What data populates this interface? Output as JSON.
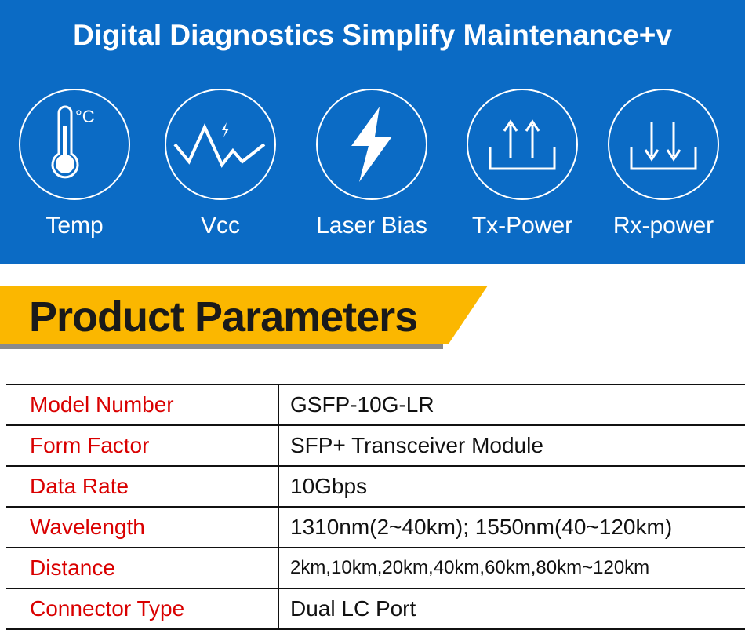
{
  "header": {
    "title": "Digital Diagnostics Simplify Maintenance+v"
  },
  "features": [
    {
      "label": "Temp",
      "icon": "thermometer-icon"
    },
    {
      "label": "Vcc",
      "icon": "voltage-wave-icon"
    },
    {
      "label": "Laser Bias",
      "icon": "lightning-bolt-icon"
    },
    {
      "label": "Tx-Power",
      "icon": "upload-arrows-icon"
    },
    {
      "label": "Rx-power",
      "icon": "download-arrows-icon"
    }
  ],
  "section": {
    "title": "Product Parameters"
  },
  "params": [
    {
      "key": "Model Number",
      "value": "GSFP-10G-LR"
    },
    {
      "key": "Form Factor",
      "value": "SFP+ Transceiver Module"
    },
    {
      "key": "Data Rate",
      "value": "10Gbps"
    },
    {
      "key": "Wavelength",
      "value": "1310nm(2~40km); 1550nm(40~120km)"
    },
    {
      "key": "Distance",
      "value": "2km,10km,20km,40km,60km,80km~120km"
    },
    {
      "key": "Connector Type",
      "value": "Dual LC Port"
    }
  ],
  "colors": {
    "hero": "#0b6bc5",
    "banner": "#fbb700",
    "key_text": "#d90000"
  }
}
